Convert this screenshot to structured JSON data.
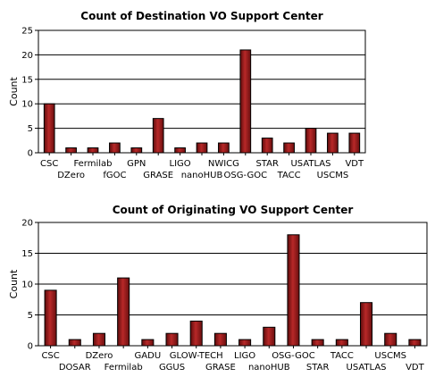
{
  "chart_data": [
    {
      "type": "bar",
      "title": "Count of Destination VO Support Center",
      "xlabel": "",
      "ylabel": "Count",
      "ylim": [
        0,
        25
      ],
      "yticks": [
        0,
        5,
        10,
        15,
        20,
        25
      ],
      "grid": "horizontal",
      "bar_color": "#9c1a1a",
      "categories": [
        "CSC",
        "DZero",
        "Fermilab",
        "fGOC",
        "GPN",
        "GRASE",
        "LIGO",
        "nanoHUB",
        "NWICG",
        "OSG-GOC",
        "STAR",
        "TACC",
        "USATLAS",
        "USCMS",
        "VDT"
      ],
      "values": [
        10,
        1,
        1,
        2,
        1,
        7,
        1,
        2,
        2,
        21,
        3,
        2,
        5,
        4,
        4
      ]
    },
    {
      "type": "bar",
      "title": "Count of Originating VO Support Center",
      "xlabel": "",
      "ylabel": "Count",
      "ylim": [
        0,
        20
      ],
      "yticks": [
        0,
        5,
        10,
        15,
        20
      ],
      "grid": "horizontal",
      "bar_color": "#9c1a1a",
      "categories": [
        "CSC",
        "DOSAR",
        "DZero",
        "Fermilab",
        "GADU",
        "GGUS",
        "GLOW-TECH",
        "GRASE",
        "LIGO",
        "nanoHUB",
        "OSG-GOC",
        "STAR",
        "TACC",
        "USATLAS",
        "USCMS",
        "VDT"
      ],
      "values": [
        9,
        1,
        2,
        11,
        1,
        2,
        4,
        2,
        1,
        3,
        18,
        1,
        1,
        7,
        2,
        1
      ]
    }
  ]
}
